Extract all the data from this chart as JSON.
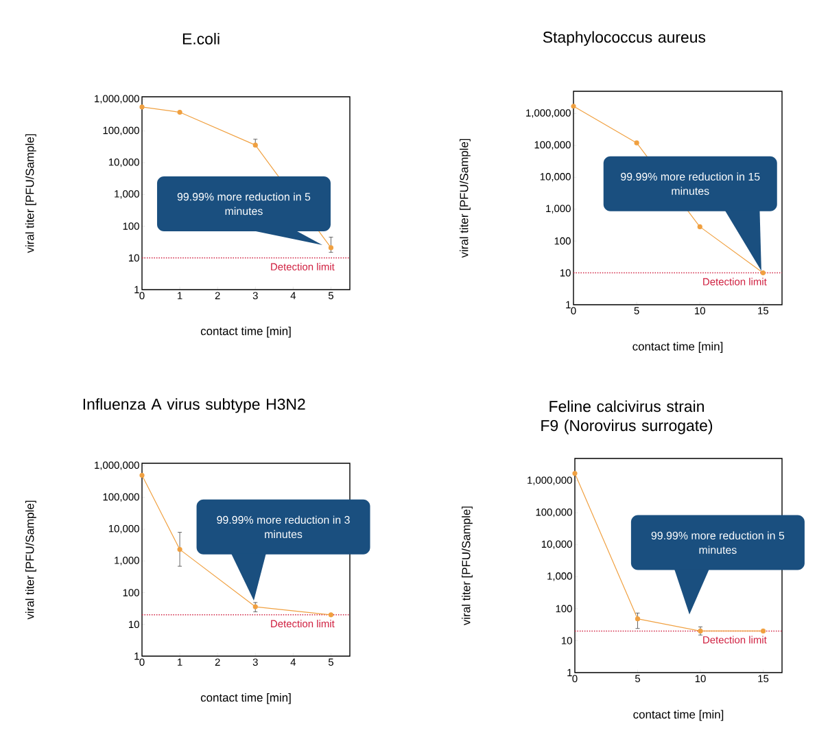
{
  "chart_data": [
    {
      "type": "line",
      "title": "E.coli",
      "xlabel": "contact time [min]",
      "ylabel": "viral titer [PFU/Sample]",
      "log": "y",
      "marker": "circle",
      "color": "#f0a040",
      "x": [
        0,
        1,
        3,
        5
      ],
      "values": [
        570000,
        390000,
        36000,
        21
      ],
      "errors": [
        null,
        null,
        [
          33000,
          55000
        ],
        [
          15,
          45
        ]
      ],
      "xlim": [
        0,
        5.5
      ],
      "xticks": [
        0,
        1,
        2,
        3,
        4,
        5
      ],
      "ylim": [
        1,
        1200000
      ],
      "yticks": [
        1,
        10,
        100,
        {
          "value": 1000,
          "label": "1,000"
        },
        {
          "value": 10000,
          "label": "10,000"
        },
        {
          "value": 100000,
          "label": "100,000"
        },
        {
          "value": 1000000,
          "label": "1,000,000"
        }
      ],
      "ref_lines": [
        {
          "axis": "y",
          "value": 10,
          "label": "Detection limit",
          "color": "#d02040",
          "line_style": "dotted"
        }
      ],
      "annotations": [
        "99.99% more reduction in 5 minutes"
      ]
    },
    {
      "type": "line",
      "title": "Staphylococcus aureus",
      "xlabel": "contact time [min]",
      "ylabel": "viral titer [PFU/Sample]",
      "log": "y",
      "marker": "circle",
      "color": "#f0a040",
      "x": [
        0,
        5,
        10,
        15
      ],
      "values": [
        1700000,
        120000,
        280,
        10
      ],
      "xlim": [
        0,
        16.5
      ],
      "xticks": [
        0,
        5,
        10,
        15
      ],
      "ylim": [
        1,
        5000000
      ],
      "yticks": [
        1,
        10,
        100,
        {
          "value": 1000,
          "label": "1,000"
        },
        {
          "value": 10000,
          "label": "10,000"
        },
        {
          "value": 100000,
          "label": "100,000"
        },
        {
          "value": 1000000,
          "label": "1,000,000"
        }
      ],
      "ref_lines": [
        {
          "axis": "y",
          "value": 10,
          "label": "Detection limit",
          "color": "#d02040",
          "line_style": "dotted"
        }
      ],
      "annotations": [
        "99.99% more reduction in 15 minutes"
      ]
    },
    {
      "type": "line",
      "title": "Influenza A virus subtype H3N2",
      "xlabel": "contact time [min]",
      "ylabel": "viral titer [PFU/Sample]",
      "log": "y",
      "marker": "circle",
      "color": "#f0a040",
      "x": [
        0,
        1,
        3,
        5
      ],
      "values": [
        500000,
        2300,
        36,
        20
      ],
      "errors": [
        null,
        [
          680,
          8000
        ],
        [
          25,
          49
        ],
        null
      ],
      "xlim": [
        0,
        5.5
      ],
      "xticks": [
        0,
        1,
        2,
        3,
        4,
        5
      ],
      "ylim": [
        1,
        1200000
      ],
      "yticks": [
        1,
        10,
        100,
        {
          "value": 1000,
          "label": "1,000"
        },
        {
          "value": 10000,
          "label": "10,000"
        },
        {
          "value": 100000,
          "label": "100,000"
        },
        {
          "value": 1000000,
          "label": "1,000,000"
        }
      ],
      "ref_lines": [
        {
          "axis": "y",
          "value": 20,
          "label": "Detection limit",
          "color": "#d02040",
          "line_style": "dotted"
        }
      ],
      "annotations": [
        "99.99% more reduction in 3 minutes"
      ]
    },
    {
      "type": "line",
      "title": "Feline calcivirus strain F9 (Norovirus surrogate)",
      "xlabel": "contact time [min]",
      "ylabel": "viral titer [PFU/Sample]",
      "log": "y",
      "marker": "circle",
      "color": "#f0a040",
      "x": [
        0,
        5,
        10,
        15
      ],
      "values": [
        1700000,
        48,
        20,
        20
      ],
      "errors": [
        null,
        [
          24,
          73
        ],
        [
          15,
          27
        ],
        null
      ],
      "xlim": [
        0,
        16.5
      ],
      "xticks": [
        0,
        5,
        10,
        15
      ],
      "ylim": [
        1,
        5000000
      ],
      "yticks": [
        1,
        10,
        100,
        {
          "value": 1000,
          "label": "1,000"
        },
        {
          "value": 10000,
          "label": "10,000"
        },
        {
          "value": 100000,
          "label": "100,000"
        },
        {
          "value": 1000000,
          "label": "1,000,000"
        }
      ],
      "ref_lines": [
        {
          "axis": "y",
          "value": 20,
          "label": "Detection limit",
          "color": "#d02040",
          "line_style": "dotted"
        }
      ],
      "annotations": [
        "99.99% more reduction in 5 minutes"
      ]
    }
  ]
}
